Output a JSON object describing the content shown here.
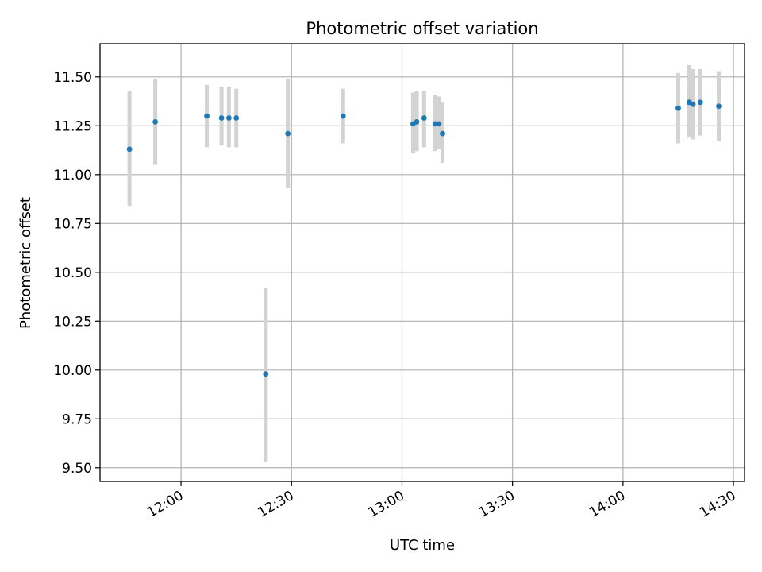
{
  "chart_data": {
    "type": "scatter",
    "title": "Photometric offset variation",
    "xlabel": "UTC time",
    "ylabel": "Photometric offset",
    "x_axis": "time",
    "xlim": [
      "11:38",
      "14:33"
    ],
    "ylim": [
      9.43,
      11.67
    ],
    "xticks": [
      "12:00",
      "12:30",
      "13:00",
      "13:30",
      "14:00",
      "14:30"
    ],
    "yticks": [
      "9.50",
      "9.75",
      "10.00",
      "10.25",
      "10.50",
      "10.75",
      "11.00",
      "11.25",
      "11.50"
    ],
    "grid": true,
    "marker_color": "#1f77b4",
    "errorbar_color": "#d3d3d3",
    "points": [
      {
        "x": "11:46",
        "y": 11.13,
        "ylow": 10.84,
        "yhigh": 11.43
      },
      {
        "x": "11:53",
        "y": 11.27,
        "ylow": 11.05,
        "yhigh": 11.49
      },
      {
        "x": "12:07",
        "y": 11.3,
        "ylow": 11.14,
        "yhigh": 11.46
      },
      {
        "x": "12:11",
        "y": 11.29,
        "ylow": 11.15,
        "yhigh": 11.45
      },
      {
        "x": "12:13",
        "y": 11.29,
        "ylow": 11.14,
        "yhigh": 11.45
      },
      {
        "x": "12:15",
        "y": 11.29,
        "ylow": 11.14,
        "yhigh": 11.44
      },
      {
        "x": "12:23",
        "y": 9.98,
        "ylow": 9.53,
        "yhigh": 10.42
      },
      {
        "x": "12:29",
        "y": 11.21,
        "ylow": 10.93,
        "yhigh": 11.49
      },
      {
        "x": "12:44",
        "y": 11.3,
        "ylow": 11.16,
        "yhigh": 11.44
      },
      {
        "x": "13:03",
        "y": 11.26,
        "ylow": 11.11,
        "yhigh": 11.42
      },
      {
        "x": "13:04",
        "y": 11.27,
        "ylow": 11.12,
        "yhigh": 11.43
      },
      {
        "x": "13:06",
        "y": 11.29,
        "ylow": 11.14,
        "yhigh": 11.43
      },
      {
        "x": "13:09",
        "y": 11.26,
        "ylow": 11.12,
        "yhigh": 11.41
      },
      {
        "x": "13:10",
        "y": 11.26,
        "ylow": 11.13,
        "yhigh": 11.4
      },
      {
        "x": "13:11",
        "y": 11.21,
        "ylow": 11.06,
        "yhigh": 11.37
      },
      {
        "x": "14:15",
        "y": 11.34,
        "ylow": 11.16,
        "yhigh": 11.52
      },
      {
        "x": "14:18",
        "y": 11.37,
        "ylow": 11.19,
        "yhigh": 11.55
      },
      {
        "x": "14:18",
        "y": 11.37,
        "ylow": 11.19,
        "yhigh": 11.56
      },
      {
        "x": "14:19",
        "y": 11.36,
        "ylow": 11.18,
        "yhigh": 11.54
      },
      {
        "x": "14:21",
        "y": 11.37,
        "ylow": 11.2,
        "yhigh": 11.54
      },
      {
        "x": "14:26",
        "y": 11.35,
        "ylow": 11.17,
        "yhigh": 11.53
      }
    ]
  }
}
